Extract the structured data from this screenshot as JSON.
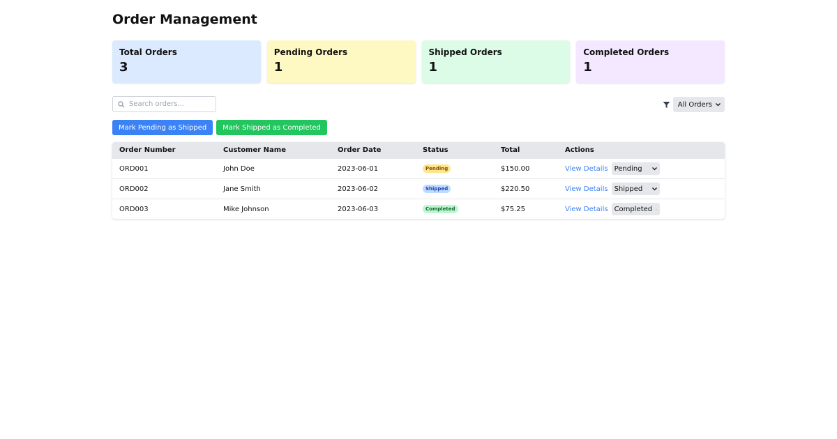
{
  "header": {
    "title": "Order Management"
  },
  "stats": [
    {
      "label": "Total Orders",
      "value": 3
    },
    {
      "label": "Pending Orders",
      "value": 1
    },
    {
      "label": "Shipped Orders",
      "value": 1
    },
    {
      "label": "Completed Orders",
      "value": 1
    }
  ],
  "search": {
    "placeholder": "Search orders..."
  },
  "filter": {
    "selected": "All Orders"
  },
  "buttons": [
    "Mark Pending as Shipped",
    "Mark Shipped as Completed"
  ],
  "table": {
    "columns": [
      "Order Number",
      "Customer Name",
      "Order Date",
      "Status",
      "Total",
      "Actions"
    ],
    "rows": [
      {
        "order": "ORD001",
        "customer": "John Doe",
        "date": "2023-06-01",
        "status": "Pending",
        "total": "$150.00",
        "action": "View Details",
        "select": "Pending"
      },
      {
        "order": "ORD002",
        "customer": "Jane Smith",
        "date": "2023-06-02",
        "status": "Shipped",
        "total": "$220.50",
        "action": "View Details",
        "select": "Shipped"
      },
      {
        "order": "ORD003",
        "customer": "Mike Johnson",
        "date": "2023-06-03",
        "status": "Completed",
        "total": "$75.25",
        "action": "View Details",
        "select": "Completed"
      }
    ]
  }
}
